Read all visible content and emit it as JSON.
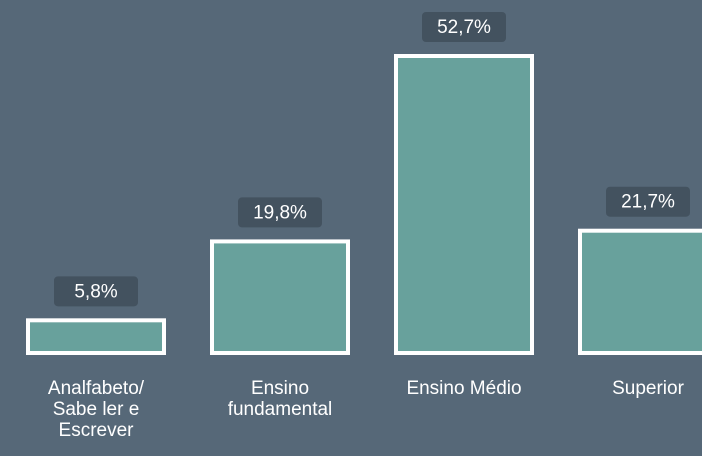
{
  "colors": {
    "background": "#566878",
    "bar_fill": "#68a19c",
    "bar_stroke": "#ffffff",
    "label_box": "#43525f",
    "text": "#ffffff"
  },
  "chart_data": {
    "type": "bar",
    "categories": [
      "Analfabeto/\nSabe ler e\nEscrever",
      "Ensino\nfundamental",
      "Ensino Médio",
      "Superior"
    ],
    "values": [
      5.8,
      19.8,
      52.7,
      21.7
    ],
    "data_labels": [
      "5,8%",
      "19,8%",
      "52,7%",
      "21,7%"
    ],
    "title": "",
    "xlabel": "",
    "ylabel": "",
    "ylim": [
      0,
      52.7
    ],
    "grid": false,
    "legend": "none"
  }
}
